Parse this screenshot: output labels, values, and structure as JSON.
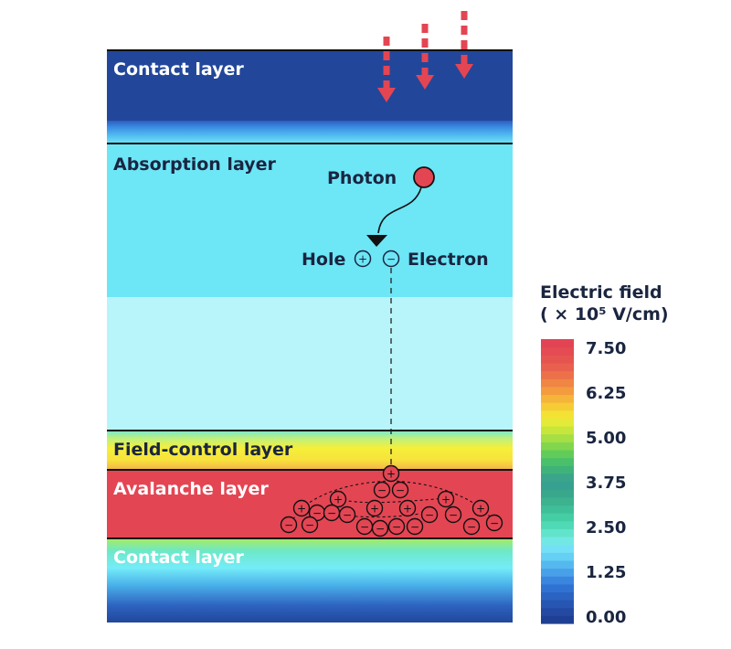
{
  "layers": {
    "contact_top": "Contact layer",
    "absorption": "Absorption layer",
    "field_control": "Field-control layer",
    "avalanche": "Avalanche layer",
    "contact_bottom": "Contact layer"
  },
  "labels": {
    "photon": "Photon",
    "hole": "Hole",
    "electron": "Electron",
    "plus": "+",
    "minus": "−"
  },
  "colorbar": {
    "title_line1": "Electric field",
    "title_line2": "( × 10⁵ V/cm)",
    "ticks": [
      "7.50",
      "6.25",
      "5.00",
      "3.75",
      "2.50",
      "1.25",
      "0.00"
    ]
  },
  "colors": {
    "contact": "#22479a",
    "absorption": "#6de6f6",
    "depletion": "#b7f5fb",
    "field_control": "#f7ec36",
    "avalanche": "#e44553",
    "photon": "#e44553",
    "arrows": "#e44553"
  }
}
